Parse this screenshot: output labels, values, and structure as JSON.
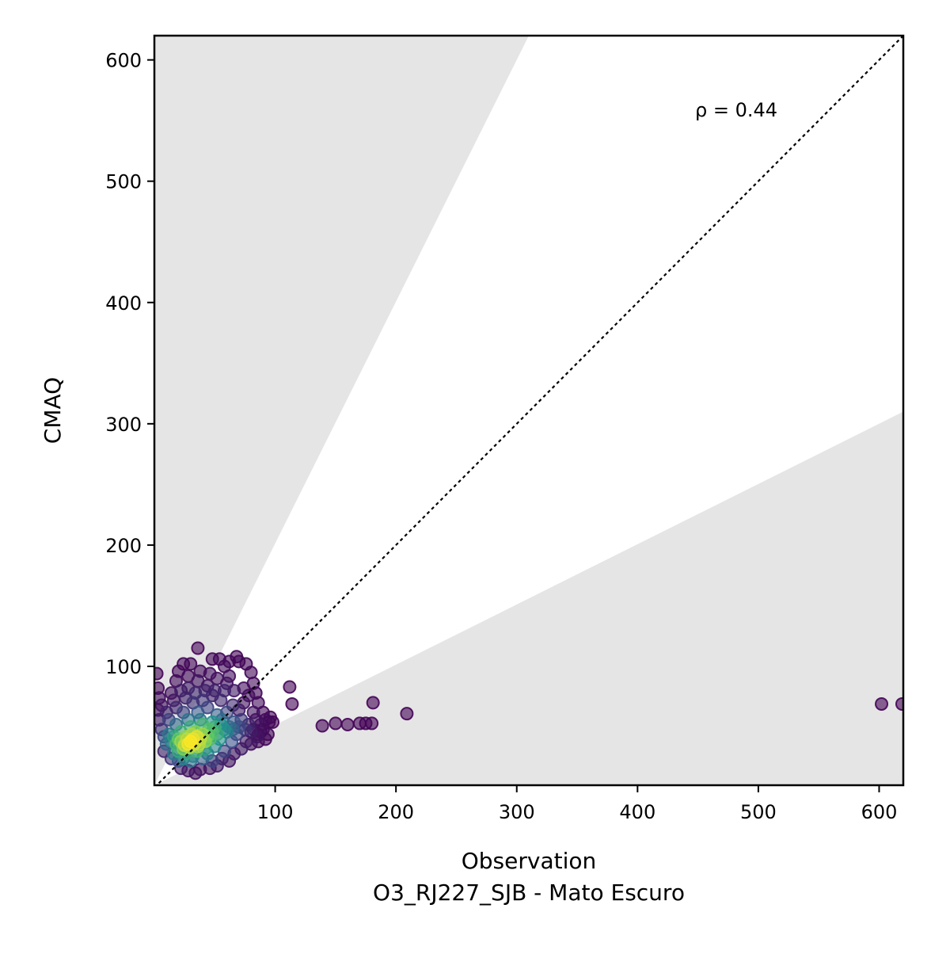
{
  "chart_data": {
    "type": "scatter",
    "title": "",
    "xlabel": "Observation",
    "xlabel_sub": "O3_RJ227_SJB - Mato Escuro",
    "ylabel": "CMAQ",
    "xlim": [
      0,
      620
    ],
    "ylim": [
      2,
      620
    ],
    "xticks": [
      100,
      200,
      300,
      400,
      500,
      600
    ],
    "yticks": [
      100,
      200,
      300,
      400,
      500,
      600
    ],
    "grid": false,
    "legend": "none",
    "annotation": "ρ = 0.44",
    "reference_line": "y = x",
    "shaded_band": {
      "upper_slope": 2.0,
      "lower_slope": 0.5
    },
    "colormap": [
      "#440154",
      "#3b528b",
      "#21918c",
      "#5ec962",
      "#fde725"
    ],
    "point_color_by": "density",
    "points": [
      [
        30,
        38,
        1.0
      ],
      [
        28,
        36,
        0.98
      ],
      [
        32,
        40,
        0.97
      ],
      [
        35,
        42,
        0.95
      ],
      [
        25,
        35,
        0.92
      ],
      [
        38,
        40,
        0.9
      ],
      [
        33,
        36,
        0.93
      ],
      [
        27,
        40,
        0.9
      ],
      [
        22,
        38,
        0.85
      ],
      [
        40,
        44,
        0.85
      ],
      [
        36,
        34,
        0.86
      ],
      [
        29,
        33,
        0.88
      ],
      [
        31,
        44,
        0.87
      ],
      [
        24,
        32,
        0.8
      ],
      [
        42,
        38,
        0.82
      ],
      [
        34,
        46,
        0.8
      ],
      [
        26,
        42,
        0.82
      ],
      [
        37,
        36,
        0.88
      ],
      [
        20,
        40,
        0.75
      ],
      [
        44,
        42,
        0.75
      ],
      [
        45,
        48,
        0.7
      ],
      [
        48,
        46,
        0.68
      ],
      [
        50,
        50,
        0.62
      ],
      [
        18,
        36,
        0.66
      ],
      [
        16,
        42,
        0.55
      ],
      [
        52,
        44,
        0.6
      ],
      [
        40,
        52,
        0.65
      ],
      [
        30,
        50,
        0.6
      ],
      [
        22,
        46,
        0.62
      ],
      [
        55,
        52,
        0.5
      ],
      [
        58,
        48,
        0.48
      ],
      [
        46,
        40,
        0.7
      ],
      [
        20,
        30,
        0.6
      ],
      [
        26,
        28,
        0.6
      ],
      [
        35,
        30,
        0.65
      ],
      [
        42,
        32,
        0.55
      ],
      [
        14,
        38,
        0.45
      ],
      [
        12,
        44,
        0.4
      ],
      [
        60,
        46,
        0.42
      ],
      [
        48,
        54,
        0.5
      ],
      [
        62,
        50,
        0.35
      ],
      [
        65,
        48,
        0.3
      ],
      [
        56,
        56,
        0.35
      ],
      [
        38,
        56,
        0.4
      ],
      [
        28,
        56,
        0.38
      ],
      [
        18,
        52,
        0.35
      ],
      [
        10,
        36,
        0.32
      ],
      [
        16,
        28,
        0.4
      ],
      [
        24,
        24,
        0.45
      ],
      [
        32,
        26,
        0.45
      ],
      [
        44,
        28,
        0.4
      ],
      [
        50,
        34,
        0.45
      ],
      [
        54,
        40,
        0.5
      ],
      [
        66,
        54,
        0.26
      ],
      [
        70,
        50,
        0.22
      ],
      [
        52,
        60,
        0.3
      ],
      [
        36,
        62,
        0.28
      ],
      [
        8,
        42,
        0.22
      ],
      [
        30,
        22,
        0.35
      ],
      [
        40,
        24,
        0.3
      ],
      [
        68,
        44,
        0.2
      ],
      [
        72,
        56,
        0.16
      ],
      [
        75,
        48,
        0.15
      ],
      [
        60,
        62,
        0.2
      ],
      [
        44,
        66,
        0.2
      ],
      [
        24,
        62,
        0.2
      ],
      [
        12,
        56,
        0.2
      ],
      [
        6,
        48,
        0.15
      ],
      [
        20,
        22,
        0.25
      ],
      [
        48,
        22,
        0.2
      ],
      [
        58,
        30,
        0.2
      ],
      [
        64,
        38,
        0.25
      ],
      [
        78,
        52,
        0.1
      ],
      [
        80,
        46,
        0.08
      ],
      [
        84,
        56,
        0.05
      ],
      [
        88,
        52,
        0.04
      ],
      [
        92,
        56,
        0.03
      ],
      [
        95,
        54,
        0.02
      ],
      [
        85,
        42,
        0.06
      ],
      [
        82,
        62,
        0.06
      ],
      [
        65,
        68,
        0.12
      ],
      [
        55,
        72,
        0.12
      ],
      [
        48,
        76,
        0.1
      ],
      [
        40,
        72,
        0.15
      ],
      [
        32,
        70,
        0.15
      ],
      [
        26,
        74,
        0.1
      ],
      [
        18,
        66,
        0.12
      ],
      [
        10,
        62,
        0.1
      ],
      [
        4,
        56,
        0.08
      ],
      [
        3,
        64,
        0.05
      ],
      [
        3,
        82,
        0.02
      ],
      [
        2,
        94,
        0.01
      ],
      [
        4,
        74,
        0.04
      ],
      [
        6,
        68,
        0.06
      ],
      [
        8,
        30,
        0.1
      ],
      [
        14,
        24,
        0.15
      ],
      [
        22,
        16,
        0.08
      ],
      [
        28,
        14,
        0.06
      ],
      [
        34,
        12,
        0.05
      ],
      [
        38,
        15,
        0.06
      ],
      [
        46,
        16,
        0.06
      ],
      [
        52,
        18,
        0.08
      ],
      [
        56,
        24,
        0.1
      ],
      [
        62,
        22,
        0.06
      ],
      [
        66,
        28,
        0.08
      ],
      [
        72,
        32,
        0.08
      ],
      [
        76,
        38,
        0.08
      ],
      [
        80,
        36,
        0.05
      ],
      [
        86,
        38,
        0.03
      ],
      [
        92,
        40,
        0.02
      ],
      [
        70,
        64,
        0.08
      ],
      [
        74,
        70,
        0.05
      ],
      [
        78,
        76,
        0.04
      ],
      [
        82,
        86,
        0.03
      ],
      [
        80,
        95,
        0.02
      ],
      [
        76,
        102,
        0.02
      ],
      [
        68,
        108,
        0.01
      ],
      [
        70,
        104,
        0.02
      ],
      [
        62,
        104,
        0.02
      ],
      [
        58,
        100,
        0.03
      ],
      [
        54,
        106,
        0.02
      ],
      [
        48,
        106,
        0.02
      ],
      [
        36,
        115,
        0.01
      ],
      [
        30,
        102,
        0.02
      ],
      [
        24,
        102,
        0.02
      ],
      [
        20,
        96,
        0.02
      ],
      [
        18,
        88,
        0.03
      ],
      [
        14,
        78,
        0.05
      ],
      [
        16,
        72,
        0.06
      ],
      [
        28,
        82,
        0.08
      ],
      [
        36,
        88,
        0.06
      ],
      [
        44,
        84,
        0.06
      ],
      [
        52,
        90,
        0.05
      ],
      [
        60,
        86,
        0.06
      ],
      [
        66,
        80,
        0.08
      ],
      [
        58,
        80,
        0.1
      ],
      [
        50,
        80,
        0.1
      ],
      [
        42,
        80,
        0.1
      ],
      [
        34,
        78,
        0.12
      ],
      [
        22,
        80,
        0.08
      ],
      [
        74,
        82,
        0.04
      ],
      [
        62,
        92,
        0.04
      ],
      [
        46,
        94,
        0.04
      ],
      [
        38,
        96,
        0.03
      ],
      [
        28,
        92,
        0.03
      ],
      [
        86,
        70,
        0.03
      ],
      [
        90,
        62,
        0.02
      ],
      [
        84,
        78,
        0.02
      ],
      [
        98,
        54,
        0.01
      ],
      [
        96,
        58,
        0.01
      ],
      [
        88,
        46,
        0.02
      ],
      [
        94,
        44,
        0.02
      ],
      [
        90,
        48,
        0.03
      ],
      [
        86,
        44,
        0.04
      ],
      [
        82,
        48,
        0.05
      ],
      [
        112,
        83,
        0.01
      ],
      [
        114,
        69,
        0.01
      ],
      [
        139,
        51,
        0.01
      ],
      [
        150,
        53,
        0.01
      ],
      [
        160,
        52,
        0.01
      ],
      [
        170,
        53,
        0.01
      ],
      [
        175,
        53,
        0.01
      ],
      [
        180,
        53,
        0.01
      ],
      [
        181,
        70,
        0.01
      ],
      [
        209,
        61,
        0.01
      ],
      [
        602,
        69,
        0.01
      ],
      [
        619,
        69,
        0.01
      ]
    ]
  }
}
